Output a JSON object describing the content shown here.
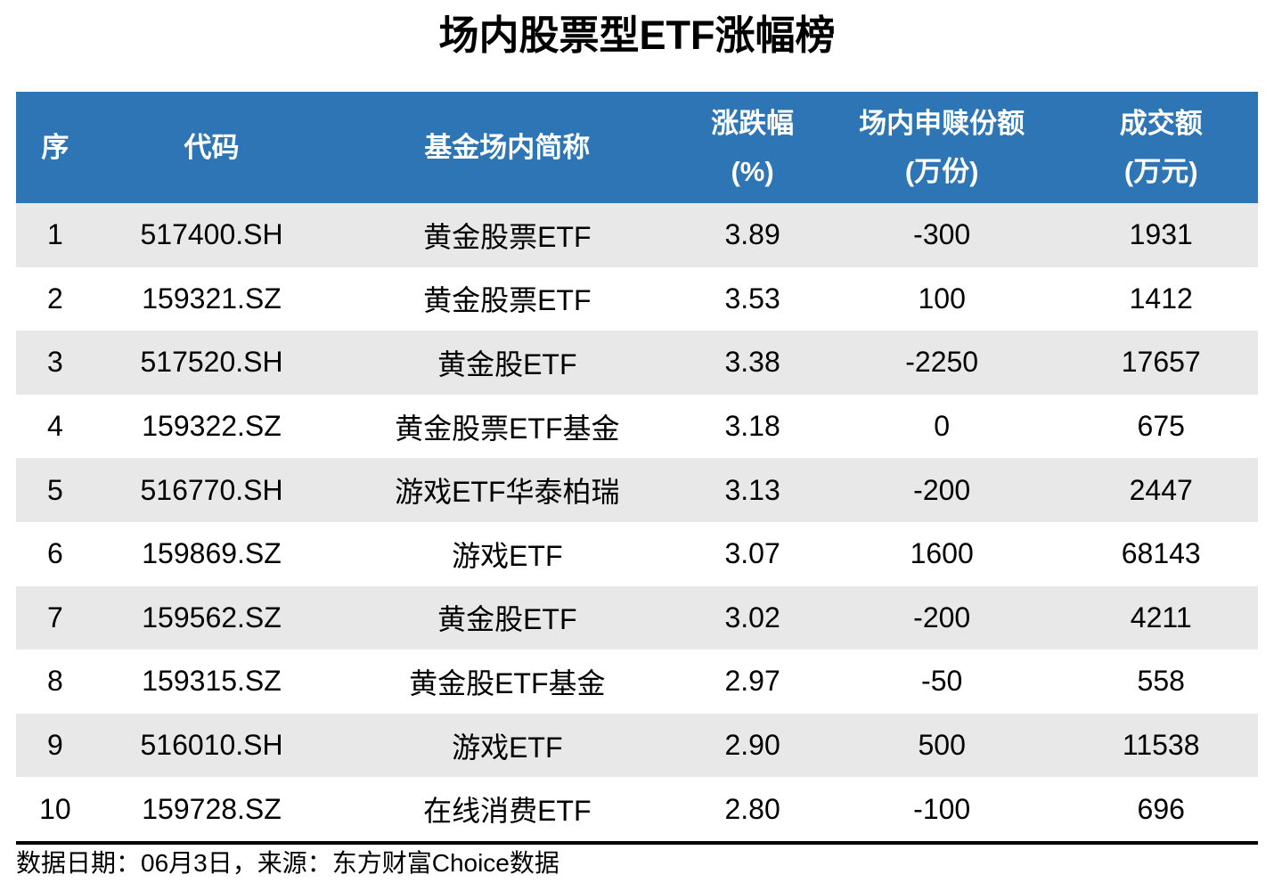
{
  "title": "场内股票型ETF涨幅榜",
  "table": {
    "columns": [
      {
        "line1": "序",
        "line2": ""
      },
      {
        "line1": "代码",
        "line2": ""
      },
      {
        "line1": "基金场内简称",
        "line2": ""
      },
      {
        "line1": "涨跌幅",
        "line2": "(%)"
      },
      {
        "line1": "场内申赎份额",
        "line2": "(万份)"
      },
      {
        "line1": "成交额",
        "line2": "(万元)"
      }
    ],
    "rows": [
      {
        "no": "1",
        "code": "517400.SH",
        "name": "黄金股票ETF",
        "change_pct": "3.89",
        "redemption_shares": "-300",
        "turnover": "1931"
      },
      {
        "no": "2",
        "code": "159321.SZ",
        "name": "黄金股票ETF",
        "change_pct": "3.53",
        "redemption_shares": "100",
        "turnover": "1412"
      },
      {
        "no": "3",
        "code": "517520.SH",
        "name": "黄金股ETF",
        "change_pct": "3.38",
        "redemption_shares": "-2250",
        "turnover": "17657"
      },
      {
        "no": "4",
        "code": "159322.SZ",
        "name": "黄金股票ETF基金",
        "change_pct": "3.18",
        "redemption_shares": "0",
        "turnover": "675"
      },
      {
        "no": "5",
        "code": "516770.SH",
        "name": "游戏ETF华泰柏瑞",
        "change_pct": "3.13",
        "redemption_shares": "-200",
        "turnover": "2447"
      },
      {
        "no": "6",
        "code": "159869.SZ",
        "name": "游戏ETF",
        "change_pct": "3.07",
        "redemption_shares": "1600",
        "turnover": "68143"
      },
      {
        "no": "7",
        "code": "159562.SZ",
        "name": "黄金股ETF",
        "change_pct": "3.02",
        "redemption_shares": "-200",
        "turnover": "4211"
      },
      {
        "no": "8",
        "code": "159315.SZ",
        "name": "黄金股ETF基金",
        "change_pct": "2.97",
        "redemption_shares": "-50",
        "turnover": "558"
      },
      {
        "no": "9",
        "code": "516010.SH",
        "name": "游戏ETF",
        "change_pct": "2.90",
        "redemption_shares": "500",
        "turnover": "11538"
      },
      {
        "no": "10",
        "code": "159728.SZ",
        "name": "在线消费ETF",
        "change_pct": "2.80",
        "redemption_shares": "-100",
        "turnover": "696"
      }
    ]
  },
  "footer": {
    "text": "数据日期：06月3日，来源：东方财富Choice数据"
  },
  "colors": {
    "header_bg": "#2E75B6",
    "header_text": "#FFFFFF",
    "row_alt_bg": "#E8E8E8",
    "row_bg": "#FFFFFF",
    "text": "#000000",
    "divider": "#000000"
  },
  "chart_data": {
    "type": "table",
    "title": "场内股票型ETF涨幅榜",
    "columns": [
      "序",
      "代码",
      "基金场内简称",
      "涨跌幅(%)",
      "场内申赎份额(万份)",
      "成交额(万元)"
    ],
    "rows": [
      [
        1,
        "517400.SH",
        "黄金股票ETF",
        3.89,
        -300,
        1931
      ],
      [
        2,
        "159321.SZ",
        "黄金股票ETF",
        3.53,
        100,
        1412
      ],
      [
        3,
        "517520.SH",
        "黄金股ETF",
        3.38,
        -2250,
        17657
      ],
      [
        4,
        "159322.SZ",
        "黄金股票ETF基金",
        3.18,
        0,
        675
      ],
      [
        5,
        "516770.SH",
        "游戏ETF华泰柏瑞",
        3.13,
        -200,
        2447
      ],
      [
        6,
        "159869.SZ",
        "游戏ETF",
        3.07,
        1600,
        68143
      ],
      [
        7,
        "159562.SZ",
        "黄金股ETF",
        3.02,
        -200,
        4211
      ],
      [
        8,
        "159315.SZ",
        "黄金股ETF基金",
        2.97,
        -50,
        558
      ],
      [
        9,
        "516010.SH",
        "游戏ETF",
        2.9,
        500,
        11538
      ],
      [
        10,
        "159728.SZ",
        "在线消费ETF",
        2.8,
        -100,
        696
      ]
    ],
    "source_note": "数据日期：06月3日，来源：东方财富Choice数据",
    "layout": {
      "header_rows": 1,
      "zebra_striping": true,
      "odd_rows_shaded": true
    }
  }
}
